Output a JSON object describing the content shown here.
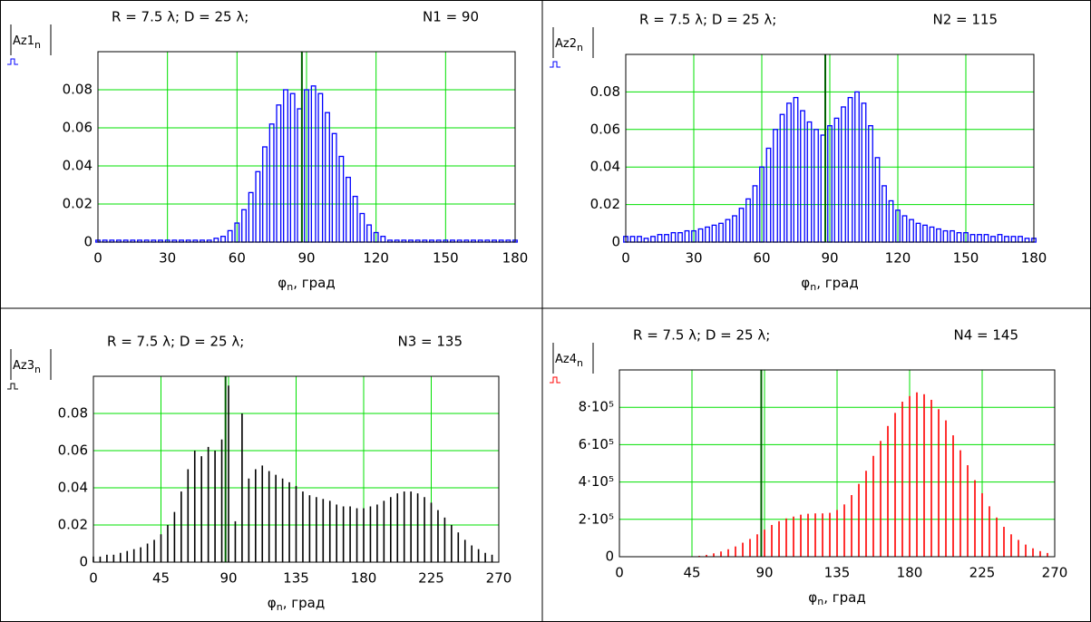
{
  "chart_data": [
    {
      "type": "bar",
      "title": "R = 7.5 λ; D = 25 λ;",
      "annotation": "N1 = 90",
      "ylabel": "Az1",
      "ylabel_sub": "n",
      "xlabel": "φ",
      "xlabel_sub": "n",
      "xlabel_suffix": ", град",
      "color": "#0000ff",
      "grid": true,
      "grid_color": "#00e000",
      "markers": [
        88
      ],
      "marker_color": "#006000",
      "xlim": [
        0,
        180
      ],
      "xticks": [
        0,
        30,
        60,
        90,
        120,
        150,
        180
      ],
      "ylim": [
        0,
        0.1
      ],
      "yticks": [
        0,
        0.02,
        0.04,
        0.06,
        0.08
      ],
      "x": [
        0,
        3,
        6,
        9,
        12,
        15,
        18,
        21,
        24,
        27,
        30,
        33,
        36,
        39,
        42,
        45,
        48,
        51,
        54,
        57,
        60,
        63,
        66,
        69,
        72,
        75,
        78,
        81,
        84,
        87,
        90,
        93,
        96,
        99,
        102,
        105,
        108,
        111,
        114,
        117,
        120,
        123,
        126,
        129,
        132,
        135,
        138,
        141,
        144,
        147,
        150,
        153,
        156,
        159,
        162,
        165,
        168,
        171,
        174,
        177,
        180
      ],
      "values": [
        0.001,
        0.001,
        0.001,
        0.001,
        0.001,
        0.001,
        0.001,
        0.001,
        0.001,
        0.001,
        0.001,
        0.001,
        0.001,
        0.001,
        0.001,
        0.001,
        0.001,
        0.002,
        0.003,
        0.006,
        0.01,
        0.017,
        0.026,
        0.037,
        0.05,
        0.062,
        0.072,
        0.08,
        0.078,
        0.07,
        0.08,
        0.082,
        0.078,
        0.068,
        0.057,
        0.045,
        0.034,
        0.024,
        0.015,
        0.009,
        0.005,
        0.003,
        0.001,
        0.001,
        0.001,
        0.001,
        0.001,
        0.001,
        0.001,
        0.001,
        0.001,
        0.001,
        0.001,
        0.001,
        0.001,
        0.001,
        0.001,
        0.001,
        0.001,
        0.001,
        0.001
      ]
    },
    {
      "type": "bar",
      "title": "R = 7.5 λ; D = 25 λ;",
      "annotation": "N2 = 115",
      "ylabel": "Az2",
      "ylabel_sub": "n",
      "xlabel": "φ",
      "xlabel_sub": "n",
      "xlabel_suffix": ", град",
      "color": "#0000ff",
      "grid": true,
      "grid_color": "#00e000",
      "markers": [
        88
      ],
      "marker_color": "#006000",
      "xlim": [
        0,
        180
      ],
      "xticks": [
        0,
        30,
        60,
        90,
        120,
        150,
        180
      ],
      "ylim": [
        0,
        0.1
      ],
      "yticks": [
        0,
        0.02,
        0.04,
        0.06,
        0.08
      ],
      "x": [
        0,
        3,
        6,
        9,
        12,
        15,
        18,
        21,
        24,
        27,
        30,
        33,
        36,
        39,
        42,
        45,
        48,
        51,
        54,
        57,
        60,
        63,
        66,
        69,
        72,
        75,
        78,
        81,
        84,
        87,
        90,
        93,
        96,
        99,
        102,
        105,
        108,
        111,
        114,
        117,
        120,
        123,
        126,
        129,
        132,
        135,
        138,
        141,
        144,
        147,
        150,
        153,
        156,
        159,
        162,
        165,
        168,
        171,
        174,
        177,
        180
      ],
      "values": [
        0.003,
        0.003,
        0.003,
        0.002,
        0.003,
        0.004,
        0.004,
        0.005,
        0.005,
        0.006,
        0.006,
        0.007,
        0.008,
        0.009,
        0.01,
        0.012,
        0.014,
        0.018,
        0.023,
        0.03,
        0.04,
        0.05,
        0.06,
        0.068,
        0.074,
        0.077,
        0.07,
        0.064,
        0.06,
        0.057,
        0.062,
        0.066,
        0.072,
        0.077,
        0.08,
        0.074,
        0.062,
        0.045,
        0.03,
        0.022,
        0.017,
        0.014,
        0.012,
        0.01,
        0.009,
        0.008,
        0.007,
        0.006,
        0.006,
        0.005,
        0.005,
        0.004,
        0.004,
        0.004,
        0.003,
        0.004,
        0.003,
        0.003,
        0.003,
        0.002,
        0.002
      ]
    },
    {
      "type": "stem",
      "title": "R = 7.5 λ; D = 25 λ;",
      "annotation": "N3 = 135",
      "ylabel": "Az3",
      "ylabel_sub": "n",
      "xlabel": "φ",
      "xlabel_sub": "n",
      "xlabel_suffix": ", град",
      "color": "#000000",
      "grid": true,
      "grid_color": "#00e000",
      "markers": [
        88
      ],
      "marker_color": "#006000",
      "xlim": [
        0,
        270
      ],
      "xticks": [
        0,
        45,
        90,
        135,
        180,
        225,
        270
      ],
      "ylim": [
        0,
        0.1
      ],
      "yticks": [
        0,
        0.02,
        0.04,
        0.06,
        0.08
      ],
      "x": [
        0,
        4.5,
        9,
        13.5,
        18,
        22.5,
        27,
        31.5,
        36,
        40.5,
        45,
        49.5,
        54,
        58.5,
        63,
        67.5,
        72,
        76.5,
        81,
        85.5,
        90,
        94.5,
        99,
        103.5,
        108,
        112.5,
        117,
        121.5,
        126,
        130.5,
        135,
        139.5,
        144,
        148.5,
        153,
        157.5,
        162,
        166.5,
        171,
        175.5,
        180,
        184.5,
        189,
        193.5,
        198,
        202.5,
        207,
        211.5,
        216,
        220.5,
        225,
        229.5,
        234,
        238.5,
        243,
        247.5,
        252,
        256.5,
        261,
        265.5
      ],
      "values": [
        0.003,
        0.003,
        0.004,
        0.004,
        0.005,
        0.006,
        0.007,
        0.008,
        0.01,
        0.012,
        0.015,
        0.02,
        0.027,
        0.038,
        0.05,
        0.06,
        0.057,
        0.062,
        0.06,
        0.066,
        0.095,
        0.022,
        0.08,
        0.045,
        0.05,
        0.052,
        0.049,
        0.047,
        0.045,
        0.043,
        0.041,
        0.038,
        0.036,
        0.035,
        0.034,
        0.033,
        0.031,
        0.03,
        0.03,
        0.029,
        0.029,
        0.03,
        0.031,
        0.033,
        0.035,
        0.037,
        0.038,
        0.038,
        0.037,
        0.035,
        0.032,
        0.028,
        0.024,
        0.02,
        0.016,
        0.012,
        0.009,
        0.007,
        0.005,
        0.004
      ]
    },
    {
      "type": "stem",
      "title": "R = 7.5 λ; D = 25 λ;",
      "annotation": "N4 = 145",
      "ylabel": "Az4",
      "ylabel_sub": "n",
      "xlabel": "φ",
      "xlabel_sub": "n",
      "xlabel_suffix": ", град",
      "color": "#ff0000",
      "grid": true,
      "grid_color": "#00e000",
      "markers": [
        88
      ],
      "marker_color": "#006000",
      "xlim": [
        0,
        270
      ],
      "xticks": [
        0,
        45,
        90,
        135,
        180,
        225,
        270
      ],
      "ylim": [
        0,
        1000000
      ],
      "yticks": [
        0,
        {
          "value": 200000,
          "label": "2·10⁵"
        },
        {
          "value": 400000,
          "label": "4·10⁵"
        },
        {
          "value": 600000,
          "label": "6·10⁵"
        },
        {
          "value": 800000,
          "label": "8·10⁵"
        }
      ],
      "x": [
        0,
        4.5,
        9,
        13.5,
        18,
        22.5,
        27,
        31.5,
        36,
        40.5,
        45,
        49.5,
        54,
        58.5,
        63,
        67.5,
        72,
        76.5,
        81,
        85.5,
        90,
        94.5,
        99,
        103.5,
        108,
        112.5,
        117,
        121.5,
        126,
        130.5,
        135,
        139.5,
        144,
        148.5,
        153,
        157.5,
        162,
        166.5,
        171,
        175.5,
        180,
        184.5,
        189,
        193.5,
        198,
        202.5,
        207,
        211.5,
        216,
        220.5,
        225,
        229.5,
        234,
        238.5,
        243,
        247.5,
        252,
        256.5,
        261,
        265.5
      ],
      "values": [
        0,
        0,
        0,
        0,
        0,
        0,
        0,
        0,
        0,
        0,
        2000,
        5000,
        10000,
        18000,
        28000,
        40000,
        55000,
        75000,
        95000,
        120000,
        145000,
        170000,
        190000,
        205000,
        215000,
        225000,
        230000,
        232000,
        232000,
        235000,
        250000,
        280000,
        330000,
        390000,
        460000,
        540000,
        620000,
        700000,
        770000,
        830000,
        860000,
        880000,
        870000,
        840000,
        790000,
        730000,
        650000,
        570000,
        490000,
        410000,
        340000,
        270000,
        210000,
        160000,
        120000,
        90000,
        65000,
        45000,
        30000,
        20000
      ]
    }
  ]
}
